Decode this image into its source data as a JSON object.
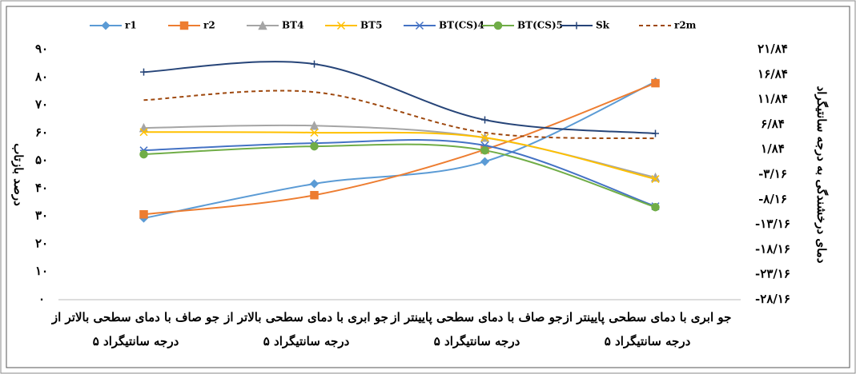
{
  "chart_data": {
    "type": "line",
    "categories": [
      [
        "جو صاف با دمای سطحی بالاتر از",
        "۵ درجه سانتیگراد"
      ],
      [
        "جو ابری با دمای سطحی بالاتر از",
        "۵ درجه سانتیگراد"
      ],
      [
        "جو صاف با دمای سطحی پایینتر از",
        "۵ درجه سانتیگراد"
      ],
      [
        "جو ابری با دمای سطحی پایینتر از",
        "۵ درجه سانتیگراد"
      ]
    ],
    "ylabel": "درصد بازتاب",
    "y2label": "دمای درخشندگی به درجه سانتیگراد",
    "ylim": [
      0,
      90
    ],
    "yticks": [
      {
        "value": 0,
        "label": "۰"
      },
      {
        "value": 10,
        "label": "۱۰"
      },
      {
        "value": 20,
        "label": "۲۰"
      },
      {
        "value": 30,
        "label": "۳۰"
      },
      {
        "value": 40,
        "label": "۴۰"
      },
      {
        "value": 50,
        "label": "۵۰"
      },
      {
        "value": 60,
        "label": "۶۰"
      },
      {
        "value": 70,
        "label": "۷۰"
      },
      {
        "value": 80,
        "label": "۸۰"
      },
      {
        "value": 90,
        "label": "۹۰"
      }
    ],
    "y2lim": [
      -28.16,
      21.84
    ],
    "y2ticks": [
      {
        "value": -28.16,
        "label": "-۲۸/۱۶"
      },
      {
        "value": -23.16,
        "label": "-۲۳/۱۶"
      },
      {
        "value": -18.16,
        "label": "-۱۸/۱۶"
      },
      {
        "value": -13.16,
        "label": "-۱۳/۱۶"
      },
      {
        "value": -8.16,
        "label": "-۸/۱۶"
      },
      {
        "value": -3.16,
        "label": "-۳/۱۶"
      },
      {
        "value": 1.84,
        "label": "۱/۸۴"
      },
      {
        "value": 6.84,
        "label": "۶/۸۴"
      },
      {
        "value": 11.84,
        "label": "۱۱/۸۴"
      },
      {
        "value": 16.84,
        "label": "۱۶/۸۴"
      },
      {
        "value": 21.84,
        "label": "۲۱/۸۴"
      }
    ],
    "legend": "top",
    "series": [
      {
        "name": "r1",
        "color": "#5b9bd5",
        "marker": "diamond",
        "values": [
          29.3,
          41.7,
          49.7,
          78.4
        ]
      },
      {
        "name": "r2",
        "color": "#ed7d31",
        "marker": "square",
        "values": [
          30.7,
          37.6,
          54,
          77.9
        ]
      },
      {
        "name": "BT4",
        "color": "#a5a5a5",
        "marker": "triangle",
        "axis": "y2",
        "values": [
          6.17,
          6.62,
          4.23,
          -3.72
        ]
      },
      {
        "name": "BT5",
        "color": "#ffc000",
        "marker": "x",
        "axis": "y2",
        "values": [
          5.35,
          5.23,
          4.23,
          -4.05
        ]
      },
      {
        "name": "BT(CS)4",
        "color": "#4472c4",
        "marker": "star",
        "axis": "y2",
        "values": [
          1.68,
          3.12,
          2.67,
          -9.49
        ]
      },
      {
        "name": "BT(CS)5",
        "color": "#70ad47",
        "marker": "circle",
        "axis": "y2",
        "values": [
          0.9,
          2.5,
          1.68,
          -9.66
        ]
      },
      {
        "name": "Sk",
        "color": "#264478",
        "marker": "plus",
        "axis": "y2",
        "values": [
          17.34,
          18.95,
          7.78,
          5.06
        ]
      },
      {
        "name": "r2m",
        "color": "#9e480e",
        "marker": "none",
        "dash": true,
        "axis": "y2",
        "values": [
          11.73,
          13.34,
          5.23,
          4.07
        ]
      }
    ]
  }
}
